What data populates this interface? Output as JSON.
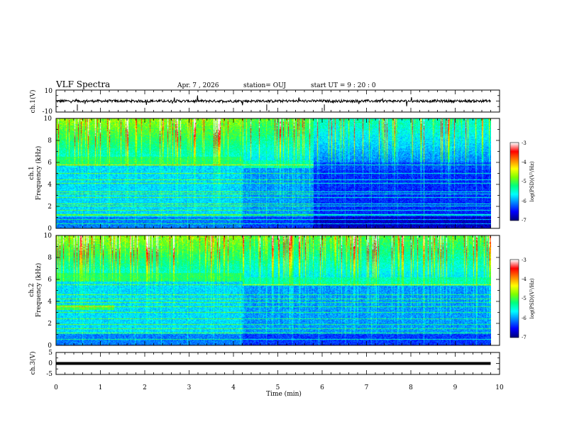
{
  "header": {
    "title": "VLF Spectra",
    "date": "Apr. 7 , 2026",
    "station": "station= OUJ",
    "start": "start  UT =   9 : 20 : 0"
  },
  "chart_data": {
    "type": "heatmap",
    "x": {
      "label": "Time (min)",
      "range": [
        0,
        10
      ],
      "ticks": [
        "0",
        "1",
        "2",
        "3",
        "4",
        "5",
        "6",
        "7",
        "8",
        "9",
        "10"
      ]
    },
    "panels": [
      {
        "kind": "waveform",
        "ylabel": "ch.1(V)",
        "ylim": [
          -10,
          10
        ],
        "ticks": [
          "10",
          "-10"
        ],
        "baseline": 0,
        "data_end_min": 9.8
      },
      {
        "kind": "spectrogram",
        "ylabel": "ch.1\nFrequency (kHz)",
        "ylabel_top": "ch.1",
        "ylabel_bottom": "Frequency (kHz)",
        "ylim": [
          0,
          10
        ],
        "ticks": [
          "0",
          "2",
          "4",
          "6",
          "8",
          "10"
        ],
        "data_end_min": 9.8,
        "colorbar": {
          "label": "log(PSD)(V²/Hz)",
          "range": [
            -7,
            -3
          ],
          "ticks": [
            "-3",
            "-4",
            "-5",
            "-6",
            "-7"
          ]
        },
        "regimes": [
          {
            "t0": 0,
            "t1": 4.2,
            "hiss_band_khz": [
              5.7,
              6.5
            ],
            "level": "elevated"
          },
          {
            "t0": 4.2,
            "t1": 5.8,
            "hiss_band_khz": [
              5.5,
              6.2
            ],
            "level": "moderate"
          },
          {
            "t0": 5.8,
            "t1": 9.8,
            "hiss_band_khz": [
              5.3,
              6.0
            ],
            "level": "quiet"
          }
        ]
      },
      {
        "kind": "spectrogram",
        "ylabel": "ch.2\nFrequency (kHz)",
        "ylabel_top": "ch.2",
        "ylabel_bottom": "Frequency (kHz)",
        "ylim": [
          0,
          10
        ],
        "ticks": [
          "0",
          "2",
          "4",
          "6",
          "8",
          "10"
        ],
        "data_end_min": 9.8,
        "colorbar": {
          "label": "log(PSD)(V²/Hz)",
          "range": [
            -7,
            -3
          ],
          "ticks": [
            "-3",
            "-4",
            "-5",
            "-6",
            "-7"
          ]
        },
        "regimes": [
          {
            "t0": 0,
            "t1": 4.2,
            "hiss_band_khz": [
              5.8,
              6.6
            ],
            "level": "elevated"
          },
          {
            "t0": 4.2,
            "t1": 9.8,
            "hiss_band_khz": [
              5.4,
              6.2
            ],
            "level": "moderate"
          }
        ]
      },
      {
        "kind": "waveform",
        "ylabel": "ch.3(V)",
        "ylim": [
          -5,
          5
        ],
        "ticks": [
          "5",
          "0",
          "-5"
        ],
        "baseline": 0,
        "data_end_min": 9.8
      }
    ]
  },
  "colors": {
    "colormap": [
      "#000080",
      "#0000ff",
      "#0080ff",
      "#00ffff",
      "#00ff80",
      "#80ff00",
      "#ffff00",
      "#ff8000",
      "#ff0000",
      "#ffffff"
    ]
  }
}
